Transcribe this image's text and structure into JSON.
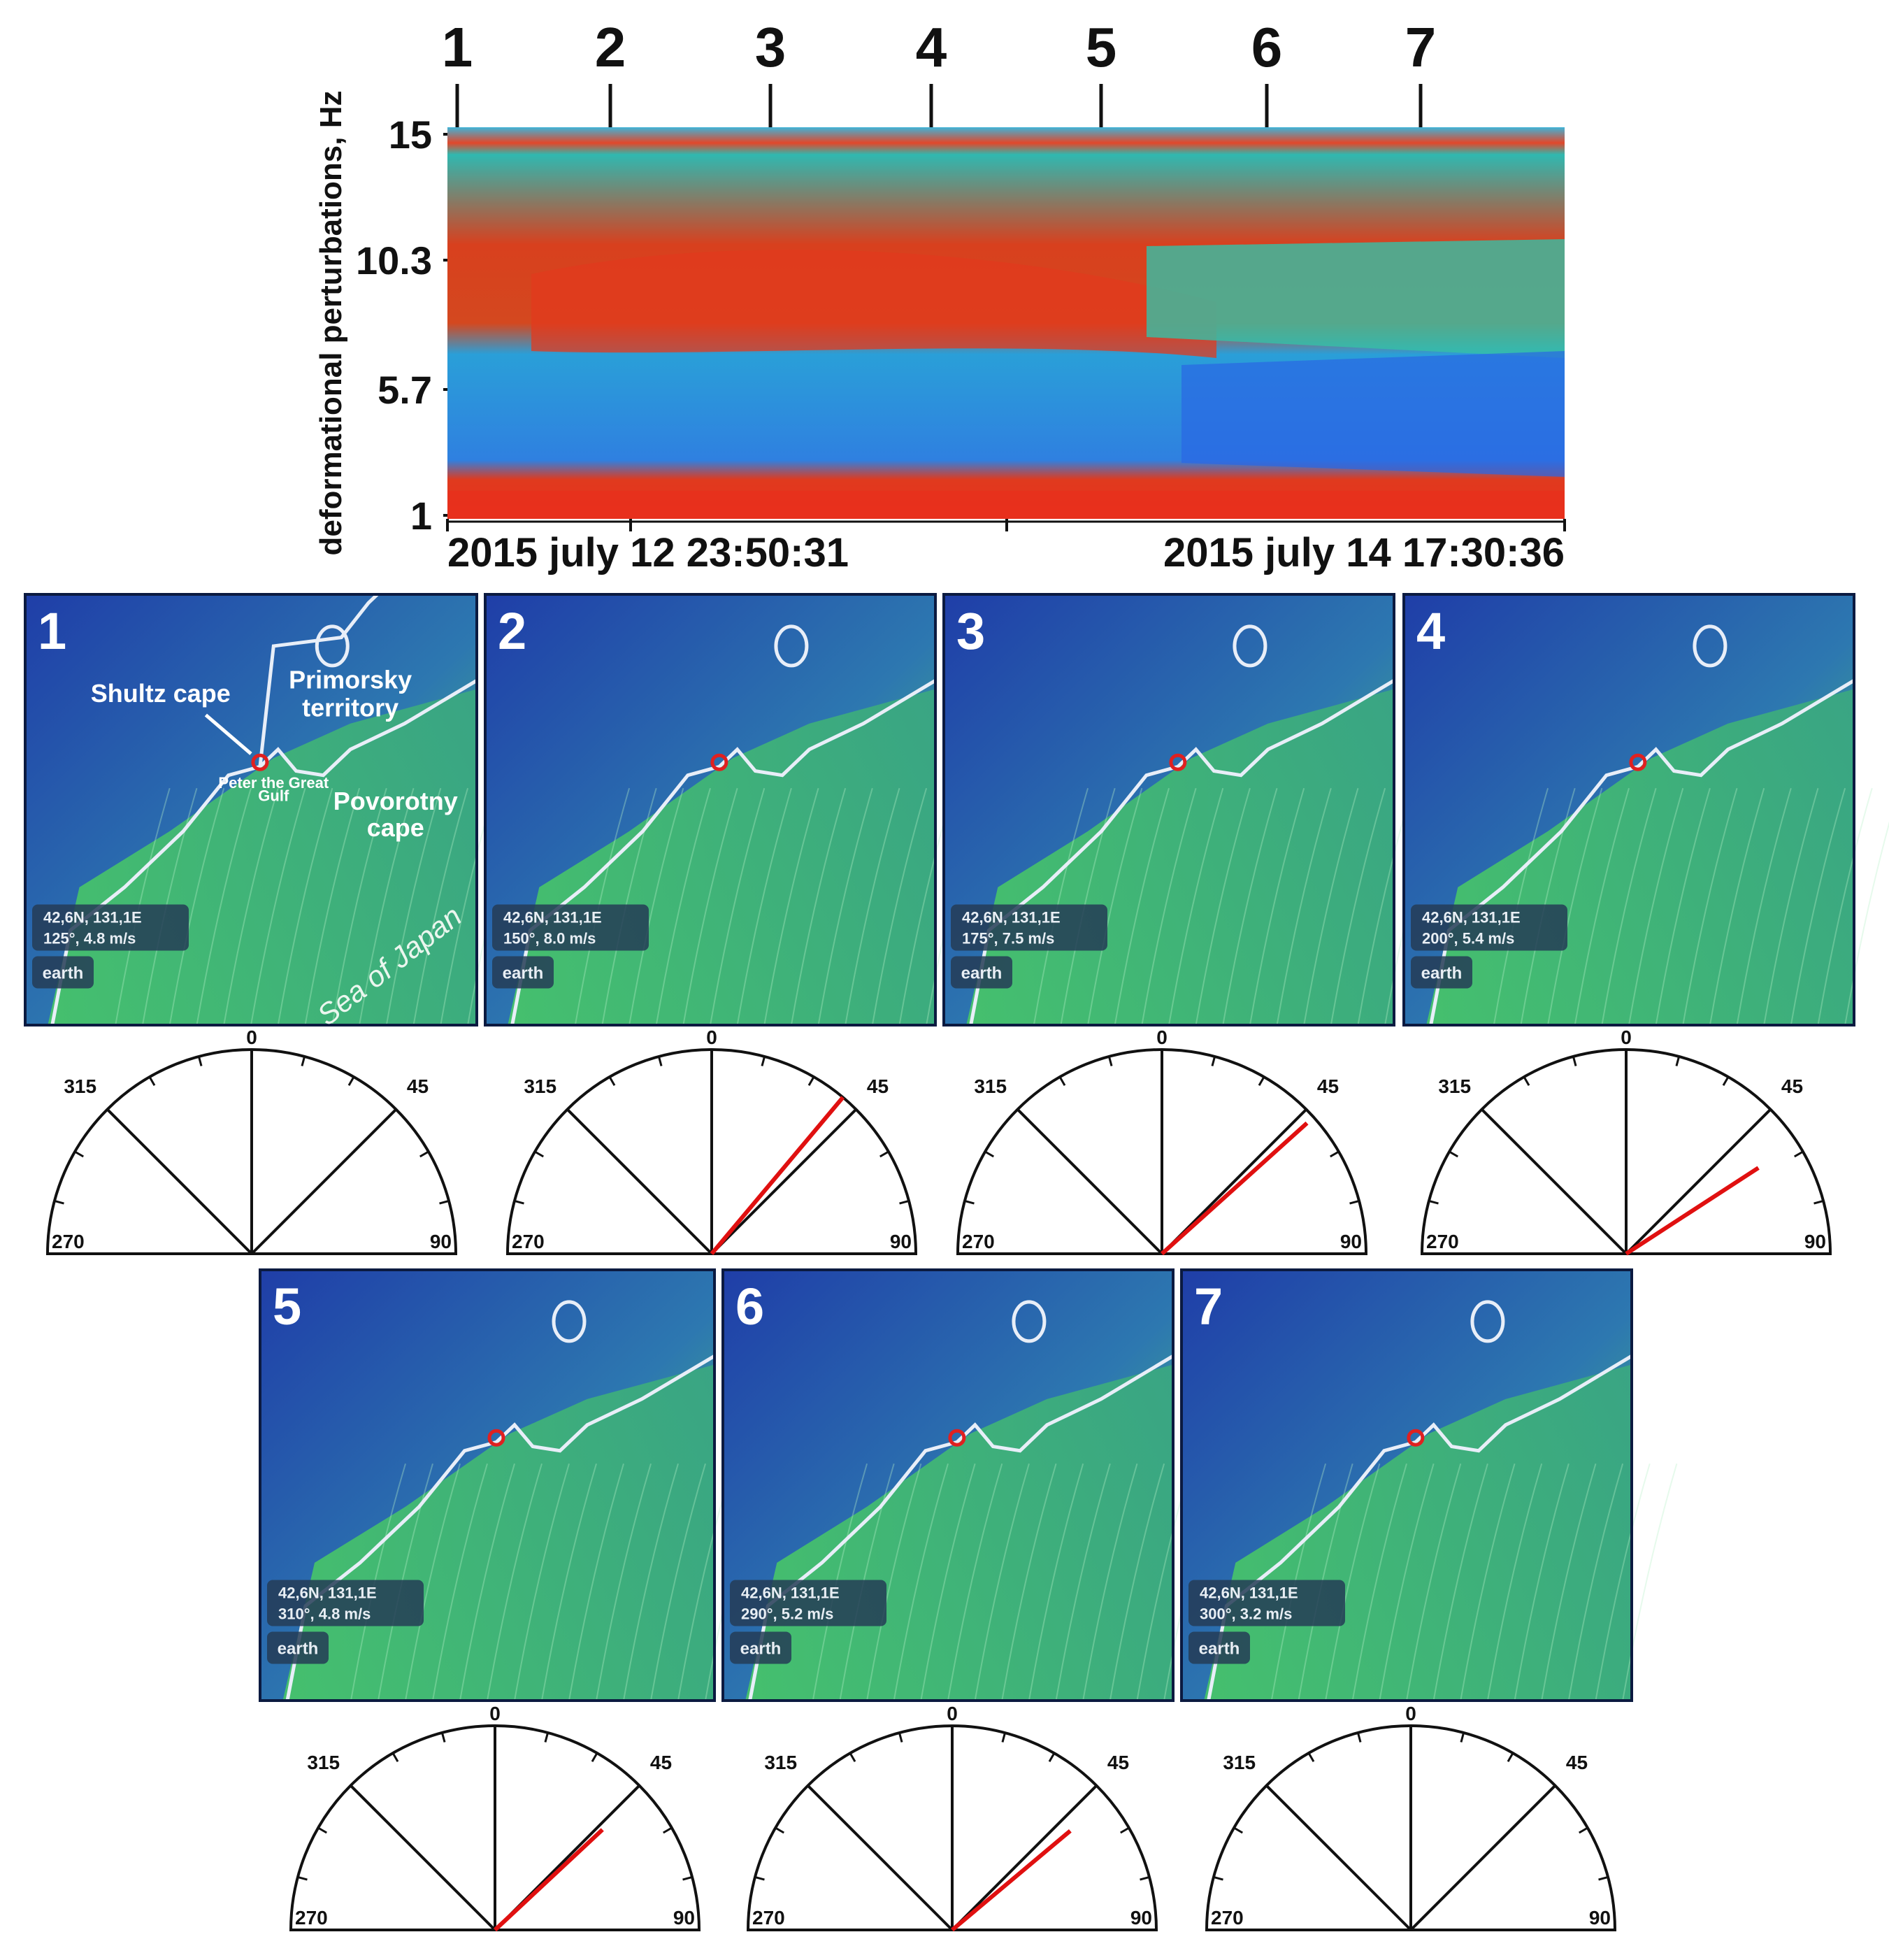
{
  "chart_data": {
    "type": "heatmap",
    "spectrogram": {
      "ylabel": "deformational perturbations, Hz",
      "y_ticks": [
        "15",
        "10.3",
        "5.7",
        "1"
      ],
      "start_label": "2015 july 12  23:50:31",
      "end_label": "2015 july 14  17:30:36",
      "markers": [
        "1",
        "2",
        "3",
        "4",
        "5",
        "6",
        "7"
      ],
      "colors": {
        "low": "#1e5ae6",
        "mid": "#2dc8a0",
        "high": "#e8301c"
      }
    },
    "panels": [
      {
        "number": "1",
        "coords": "42,6N, 131,1E",
        "wind": "125°, 4.8 m/s",
        "direction_deg": 125,
        "speed_ms": 4.8,
        "compass_angle": null
      },
      {
        "number": "2",
        "coords": "42,6N, 131,1E",
        "wind": "150°, 8.0 m/s",
        "direction_deg": 150,
        "speed_ms": 8.0,
        "compass_angle": 40
      },
      {
        "number": "3",
        "coords": "42,6N, 131,1E",
        "wind": "175°, 7.5 m/s",
        "direction_deg": 175,
        "speed_ms": 7.5,
        "compass_angle": 48
      },
      {
        "number": "4",
        "coords": "42,6N, 131,1E",
        "wind": "200°, 5.4 m/s",
        "direction_deg": 200,
        "speed_ms": 5.4,
        "compass_angle": 57
      },
      {
        "number": "5",
        "coords": "42,6N, 131,1E",
        "wind": "310°, 4.8 m/s",
        "direction_deg": 310,
        "speed_ms": 4.8,
        "compass_angle": 47
      },
      {
        "number": "6",
        "coords": "42,6N, 131,1E",
        "wind": "290°, 5.2 m/s",
        "direction_deg": 290,
        "speed_ms": 5.2,
        "compass_angle": 50
      },
      {
        "number": "7",
        "coords": "42,6N, 131,1E",
        "wind": "300°, 3.2 m/s",
        "direction_deg": 300,
        "speed_ms": 3.2,
        "compass_angle": null
      }
    ],
    "map_labels": {
      "shultz": "Shultz cape",
      "primorsky": [
        "Primorsky",
        "territory"
      ],
      "gulf": [
        "Peter the Great",
        "Gulf"
      ],
      "povorotny": [
        "Povorotny",
        "cape"
      ],
      "sea": "Sea of Japan"
    },
    "earth_badge": "earth",
    "compass_labels": [
      "0",
      "45",
      "90",
      "270",
      "315"
    ],
    "colors": {
      "map_dark": "#1f3ea8",
      "map_light": "#4fd36a",
      "coast": "#e8eef8",
      "needle": "#e01010"
    }
  }
}
